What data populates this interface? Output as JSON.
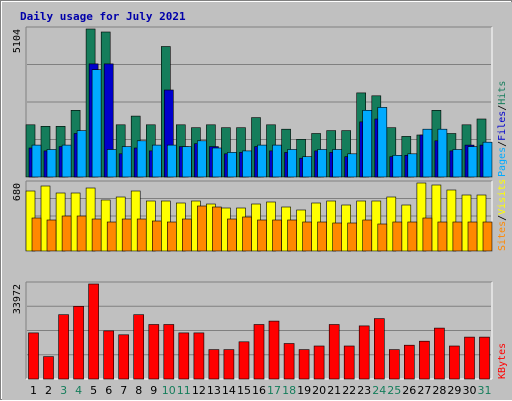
{
  "chart_data": {
    "type": "bar",
    "title": "Daily usage for July 2021",
    "categories": [
      "1",
      "2",
      "3",
      "4",
      "5",
      "6",
      "7",
      "8",
      "9",
      "10",
      "11",
      "12",
      "13",
      "14",
      "15",
      "16",
      "17",
      "18",
      "19",
      "20",
      "21",
      "22",
      "23",
      "24",
      "25",
      "26",
      "27",
      "28",
      "29",
      "30",
      "31"
    ],
    "weekend_days": [
      "3",
      "4",
      "10",
      "11",
      "17",
      "18",
      "24",
      "25",
      "31"
    ],
    "panels": [
      {
        "name": "requests",
        "max_label": "5104",
        "ymax": 5104,
        "label_parts": [
          "Pages",
          "/",
          "Files",
          "/",
          "Hits"
        ],
        "series": [
          {
            "name": "Hits",
            "color": "#157d5b",
            "values": [
              1800,
              1750,
              1750,
              2300,
              5104,
              5000,
              1800,
              2100,
              1800,
              4500,
              1800,
              1700,
              1800,
              1700,
              1700,
              2050,
              1800,
              1650,
              1300,
              1500,
              1600,
              1600,
              2900,
              2800,
              1700,
              1400,
              1450,
              2300,
              1500,
              1800,
              2000
            ]
          },
          {
            "name": "Files",
            "color": "#0000cc",
            "values": [
              1000,
              900,
              1050,
              1500,
              3900,
              3900,
              800,
              1000,
              900,
              3000,
              1050,
              1150,
              1050,
              800,
              850,
              1050,
              900,
              850,
              650,
              900,
              850,
              700,
              1900,
              2000,
              700,
              750,
              1450,
              1250,
              900,
              1100,
              1100
            ]
          },
          {
            "name": "Pages",
            "color": "#00aaff",
            "values": [
              1100,
              950,
              1100,
              1600,
              3700,
              950,
              1050,
              1250,
              1100,
              1100,
              1050,
              1250,
              1000,
              850,
              900,
              1100,
              1100,
              950,
              700,
              950,
              950,
              800,
              2300,
              2400,
              750,
              800,
              1650,
              1650,
              950,
              1050,
              1200
            ]
          }
        ]
      },
      {
        "name": "visits",
        "max_label": "680",
        "ymax": 680,
        "label_parts": [
          "Sites",
          "/",
          "Visits"
        ],
        "series": [
          {
            "name": "Visits",
            "color": "#ffff00",
            "values": [
              600,
              650,
              580,
              580,
              630,
              510,
              540,
              600,
              500,
              500,
              480,
              500,
              470,
              430,
              430,
              470,
              490,
              440,
              410,
              480,
              500,
              460,
              500,
              500,
              540,
              460,
              680,
              660,
              610,
              560,
              560
            ]
          },
          {
            "name": "Sites",
            "color": "#ff8800",
            "values": [
              330,
              310,
              350,
              350,
              320,
              290,
              320,
              320,
              300,
              290,
              320,
              450,
              440,
              320,
              340,
              310,
              310,
              310,
              290,
              290,
              280,
              280,
              310,
              270,
              290,
              290,
              330,
              290,
              290,
              290,
              290
            ]
          }
        ]
      },
      {
        "name": "kbytes",
        "max_label": "33972",
        "ymax": 33972,
        "label_parts": [
          "KBytes"
        ],
        "series": [
          {
            "name": "KBytes",
            "color": "#ff0000",
            "values": [
              16500,
              8000,
              23000,
              26000,
              33972,
              17200,
              15800,
              23000,
              19500,
              19500,
              16500,
              16500,
              10500,
              10500,
              13300,
              19500,
              20700,
              12700,
              10500,
              11800,
              19500,
              11800,
              19000,
              21600,
              10500,
              12100,
              13500,
              18200,
              11800,
              15000,
              15000
            ]
          }
        ]
      }
    ]
  },
  "colors": {
    "background": "#c0c0c0",
    "grid": "#808080",
    "title": "#0000aa",
    "weekday_tick": "#000000",
    "weekend_tick": "#157d5b",
    "slash": "#000000"
  }
}
